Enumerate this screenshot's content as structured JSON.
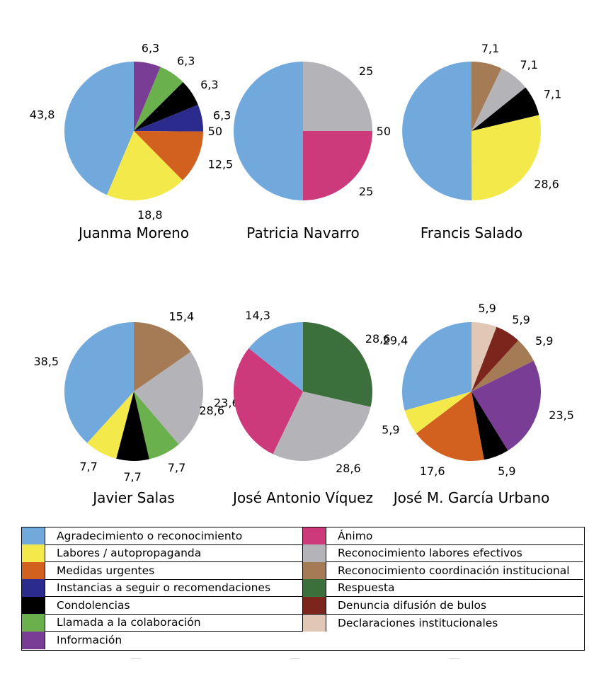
{
  "categories": [
    {
      "key": "agradecimiento",
      "label": "Agradecimiento o reconocimiento",
      "color": "#72a9dd"
    },
    {
      "key": "labores",
      "label": "Labores / autopropaganda",
      "color": "#f4e94a"
    },
    {
      "key": "medidas",
      "label": "Medidas urgentes",
      "color": "#d2601f"
    },
    {
      "key": "instancias",
      "label": "Instancias a seguir o recomendaciones",
      "color": "#2a2b8c"
    },
    {
      "key": "condolencias",
      "label": "Condolencias",
      "color": "#000000"
    },
    {
      "key": "llamada",
      "label": "Llamada a la colaboración",
      "color": "#6ab04c"
    },
    {
      "key": "informacion",
      "label": "Información",
      "color": "#7a3d96"
    },
    {
      "key": "animo",
      "label": "Ánimo",
      "color": "#cc3a7c"
    },
    {
      "key": "reconocimiento_labores",
      "label": "Reconocimiento labores efectivos",
      "color": "#b4b3b8"
    },
    {
      "key": "reconocimiento_coordinacion",
      "label": "Reconocimiento coordinación institucional",
      "color": "#a57b55"
    },
    {
      "key": "respuesta",
      "label": "Respuesta",
      "color": "#3b6f3c"
    },
    {
      "key": "denuncia",
      "label": "Denuncia difusión de bulos",
      "color": "#7b251c"
    },
    {
      "key": "declaraciones",
      "label": "Declaraciones institucionales",
      "color": "#e0c7b6"
    }
  ],
  "legend": {
    "left": [
      "agradecimiento",
      "labores",
      "medidas",
      "instancias",
      "condolencias",
      "llamada",
      "informacion"
    ],
    "right": [
      "animo",
      "reconocimiento_labores",
      "reconocimiento_coordinacion",
      "respuesta",
      "denuncia",
      "declaraciones"
    ]
  },
  "chart_data": [
    {
      "type": "pie",
      "title": "Juanma Moreno",
      "slices": [
        {
          "category": "informacion",
          "value": 6.3,
          "label": "6,3"
        },
        {
          "category": "llamada",
          "value": 6.3,
          "label": "6,3"
        },
        {
          "category": "condolencias",
          "value": 6.3,
          "label": "6,3"
        },
        {
          "category": "instancias",
          "value": 6.3,
          "label": "6,3"
        },
        {
          "category": "medidas",
          "value": 12.5,
          "label": "12,5"
        },
        {
          "category": "labores",
          "value": 18.8,
          "label": "18,8"
        },
        {
          "category": "agradecimiento",
          "value": 43.8,
          "label": "43,8"
        }
      ]
    },
    {
      "type": "pie",
      "title": "Patricia Navarro",
      "slices": [
        {
          "category": "reconocimiento_labores",
          "value": 25,
          "label": "25"
        },
        {
          "category": "animo",
          "value": 25,
          "label": "25"
        },
        {
          "category": "agradecimiento",
          "value": 50,
          "label": "50"
        }
      ]
    },
    {
      "type": "pie",
      "title": "Francis Salado",
      "slices": [
        {
          "category": "reconocimiento_coordinacion",
          "value": 7.1,
          "label": "7,1"
        },
        {
          "category": "reconocimiento_labores",
          "value": 7.1,
          "label": "7,1"
        },
        {
          "category": "condolencias",
          "value": 7.1,
          "label": "7,1"
        },
        {
          "category": "labores",
          "value": 28.6,
          "label": "28,6"
        },
        {
          "category": "agradecimiento",
          "value": 50,
          "label": "50"
        }
      ]
    },
    {
      "type": "pie",
      "title": "Javier Salas",
      "slices": [
        {
          "category": "reconocimiento_coordinacion",
          "value": 15.4,
          "label": "15,4"
        },
        {
          "category": "reconocimiento_labores",
          "value": 23.6,
          "label": "23,6"
        },
        {
          "category": "llamada",
          "value": 7.7,
          "label": "7,7"
        },
        {
          "category": "condolencias",
          "value": 7.7,
          "label": "7,7"
        },
        {
          "category": "labores",
          "value": 7.7,
          "label": "7,7"
        },
        {
          "category": "agradecimiento",
          "value": 38.5,
          "label": "38,5"
        }
      ]
    },
    {
      "type": "pie",
      "title": "José Antonio Víquez",
      "slices": [
        {
          "category": "respuesta",
          "value": 28.6,
          "label": "28,6"
        },
        {
          "category": "reconocimiento_labores",
          "value": 28.6,
          "label": "28,6"
        },
        {
          "category": "animo",
          "value": 28.6,
          "label": "28,6"
        },
        {
          "category": "agradecimiento",
          "value": 14.3,
          "label": "14,3"
        }
      ]
    },
    {
      "type": "pie",
      "title": "José M. García Urbano",
      "slices": [
        {
          "category": "declaraciones",
          "value": 5.9,
          "label": "5,9"
        },
        {
          "category": "denuncia",
          "value": 5.9,
          "label": "5,9"
        },
        {
          "category": "reconocimiento_coordinacion",
          "value": 5.9,
          "label": "5,9"
        },
        {
          "category": "informacion",
          "value": 23.5,
          "label": "23,5"
        },
        {
          "category": "condolencias",
          "value": 5.9,
          "label": "5,9"
        },
        {
          "category": "medidas",
          "value": 17.6,
          "label": "17,6"
        },
        {
          "category": "labores",
          "value": 5.9,
          "label": "5,9"
        },
        {
          "category": "agradecimiento",
          "value": 29.4,
          "label": "29,4"
        }
      ]
    }
  ]
}
